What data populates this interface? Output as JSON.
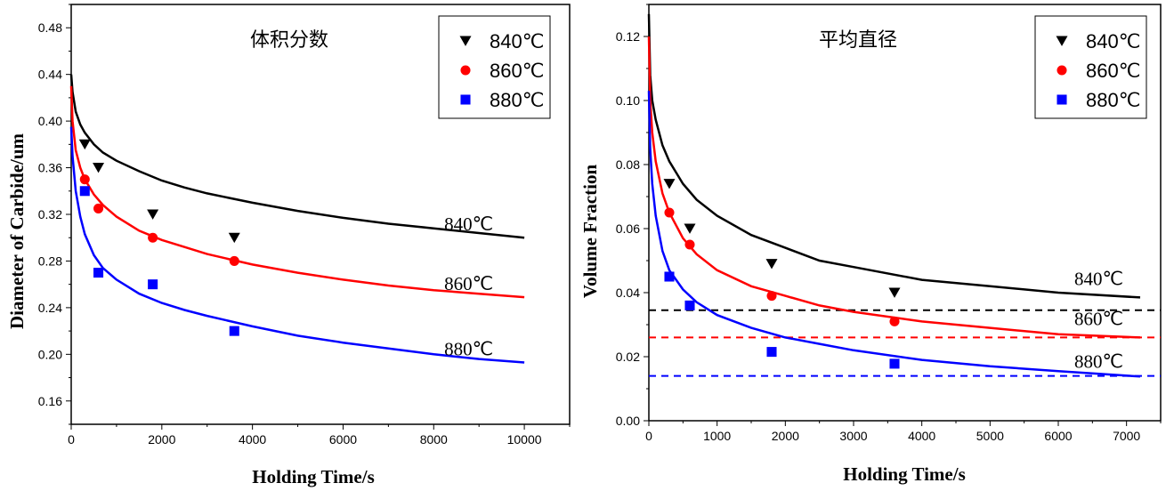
{
  "chart_data": [
    {
      "type": "scatter",
      "title": "体积分数",
      "xlabel": "Holding Time/s",
      "ylabel": "Diameter of Carbide/um",
      "xlim": [
        0,
        11000
      ],
      "ylim": [
        0.14,
        0.5
      ],
      "xticks": [
        0,
        2000,
        4000,
        6000,
        8000,
        10000
      ],
      "yticks": [
        0.16,
        0.2,
        0.24,
        0.28,
        0.32,
        0.36,
        0.4,
        0.44,
        0.48
      ],
      "xtick_labels": [
        "0",
        "2000",
        "4000",
        "6000",
        "8000",
        "10000"
      ],
      "ytick_labels": [
        "0.16",
        "0.20",
        "0.24",
        "0.28",
        "0.32",
        "0.36",
        "0.40",
        "0.44",
        "0.48"
      ],
      "grid": false,
      "legend_position": "top-right",
      "series": [
        {
          "name": "840℃",
          "color": "#000000",
          "marker": "triangle-down",
          "x": [
            300,
            600,
            1800,
            3600
          ],
          "y": [
            0.38,
            0.36,
            0.32,
            0.3
          ],
          "fit": {
            "x": [
              0,
              30,
              100,
              200,
              300,
              500,
              700,
              1000,
              1500,
              2000,
              2500,
              3000,
              4000,
              5000,
              6000,
              7000,
              8000,
              9000,
              10000
            ],
            "y": [
              0.44,
              0.425,
              0.408,
              0.397,
              0.39,
              0.38,
              0.373,
              0.366,
              0.357,
              0.349,
              0.343,
              0.338,
              0.33,
              0.323,
              0.317,
              0.312,
              0.308,
              0.304,
              0.3
            ]
          },
          "curve_label": "840℃"
        },
        {
          "name": "860℃",
          "color": "#ff0000",
          "marker": "circle",
          "x": [
            300,
            600,
            1800,
            3600
          ],
          "y": [
            0.35,
            0.325,
            0.3,
            0.28
          ],
          "fit": {
            "x": [
              0,
              30,
              100,
              200,
              300,
              500,
              700,
              1000,
              1500,
              2000,
              2500,
              3000,
              4000,
              5000,
              6000,
              7000,
              8000,
              9000,
              10000
            ],
            "y": [
              0.43,
              0.4,
              0.375,
              0.36,
              0.35,
              0.337,
              0.328,
              0.318,
              0.306,
              0.298,
              0.292,
              0.286,
              0.277,
              0.27,
              0.264,
              0.259,
              0.255,
              0.252,
              0.249
            ]
          },
          "curve_label": "860℃"
        },
        {
          "name": "880℃",
          "color": "#0000ff",
          "marker": "square",
          "x": [
            300,
            600,
            1800,
            3600
          ],
          "y": [
            0.34,
            0.27,
            0.26,
            0.22
          ],
          "fit": {
            "x": [
              0,
              30,
              100,
              200,
              300,
              500,
              700,
              1000,
              1500,
              2000,
              2500,
              3000,
              4000,
              5000,
              6000,
              7000,
              8000,
              9000,
              10000
            ],
            "y": [
              0.395,
              0.37,
              0.34,
              0.318,
              0.303,
              0.285,
              0.274,
              0.264,
              0.252,
              0.244,
              0.238,
              0.233,
              0.224,
              0.216,
              0.21,
              0.205,
              0.2,
              0.196,
              0.193
            ]
          },
          "curve_label": "880℃"
        }
      ],
      "reference_lines": []
    },
    {
      "type": "scatter",
      "title": "平均直径",
      "xlabel": "Holding Time/s",
      "ylabel": "Volume Fraction",
      "xlim": [
        0,
        7500
      ],
      "ylim": [
        0,
        0.13
      ],
      "xticks": [
        0,
        1000,
        2000,
        3000,
        4000,
        5000,
        6000,
        7000
      ],
      "yticks": [
        0.0,
        0.02,
        0.04,
        0.06,
        0.08,
        0.1,
        0.12
      ],
      "xtick_labels": [
        "0",
        "1000",
        "2000",
        "3000",
        "4000",
        "5000",
        "6000",
        "7000"
      ],
      "ytick_labels": [
        "0.00",
        "0.02",
        "0.04",
        "0.06",
        "0.08",
        "0.10",
        "0.12"
      ],
      "grid": false,
      "legend_position": "top-right",
      "series": [
        {
          "name": "840℃",
          "color": "#000000",
          "marker": "triangle-down",
          "x": [
            300,
            600,
            1800,
            3600
          ],
          "y": [
            0.074,
            0.06,
            0.049,
            0.04
          ],
          "fit": {
            "x": [
              0,
              20,
              50,
              100,
              200,
              300,
              500,
              700,
              1000,
              1500,
              2000,
              2500,
              3000,
              4000,
              5000,
              6000,
              7200
            ],
            "y": [
              0.127,
              0.108,
              0.1,
              0.094,
              0.086,
              0.081,
              0.074,
              0.069,
              0.064,
              0.058,
              0.054,
              0.05,
              0.048,
              0.044,
              0.042,
              0.04,
              0.0385
            ]
          },
          "curve_label": "840℃"
        },
        {
          "name": "860℃",
          "color": "#ff0000",
          "marker": "circle",
          "x": [
            300,
            600,
            1800,
            3600
          ],
          "y": [
            0.065,
            0.055,
            0.039,
            0.031
          ],
          "fit": {
            "x": [
              0,
              20,
              50,
              100,
              200,
              300,
              500,
              700,
              1000,
              1500,
              2000,
              2500,
              3000,
              4000,
              5000,
              6000,
              7200
            ],
            "y": [
              0.12,
              0.1,
              0.09,
              0.081,
              0.071,
              0.065,
              0.057,
              0.052,
              0.047,
              0.042,
              0.039,
              0.036,
              0.034,
              0.031,
              0.029,
              0.027,
              0.026
            ]
          },
          "curve_label": "860℃"
        },
        {
          "name": "880℃",
          "color": "#0000ff",
          "marker": "square",
          "x": [
            300,
            600,
            1800,
            3600
          ],
          "y": [
            0.045,
            0.036,
            0.0215,
            0.0178
          ],
          "fit": {
            "x": [
              0,
              20,
              50,
              100,
              200,
              300,
              500,
              700,
              1000,
              1500,
              2000,
              2500,
              3000,
              4000,
              5000,
              6000,
              7200
            ],
            "y": [
              0.103,
              0.085,
              0.074,
              0.064,
              0.053,
              0.047,
              0.041,
              0.037,
              0.033,
              0.029,
              0.026,
              0.024,
              0.022,
              0.019,
              0.017,
              0.0155,
              0.0138
            ]
          },
          "curve_label": "880℃"
        }
      ],
      "reference_lines": [
        {
          "y": 0.0345,
          "color": "#000000",
          "style": "dashed"
        },
        {
          "y": 0.026,
          "color": "#ff0000",
          "style": "dashed"
        },
        {
          "y": 0.014,
          "color": "#0000ff",
          "style": "dashed"
        }
      ]
    }
  ]
}
